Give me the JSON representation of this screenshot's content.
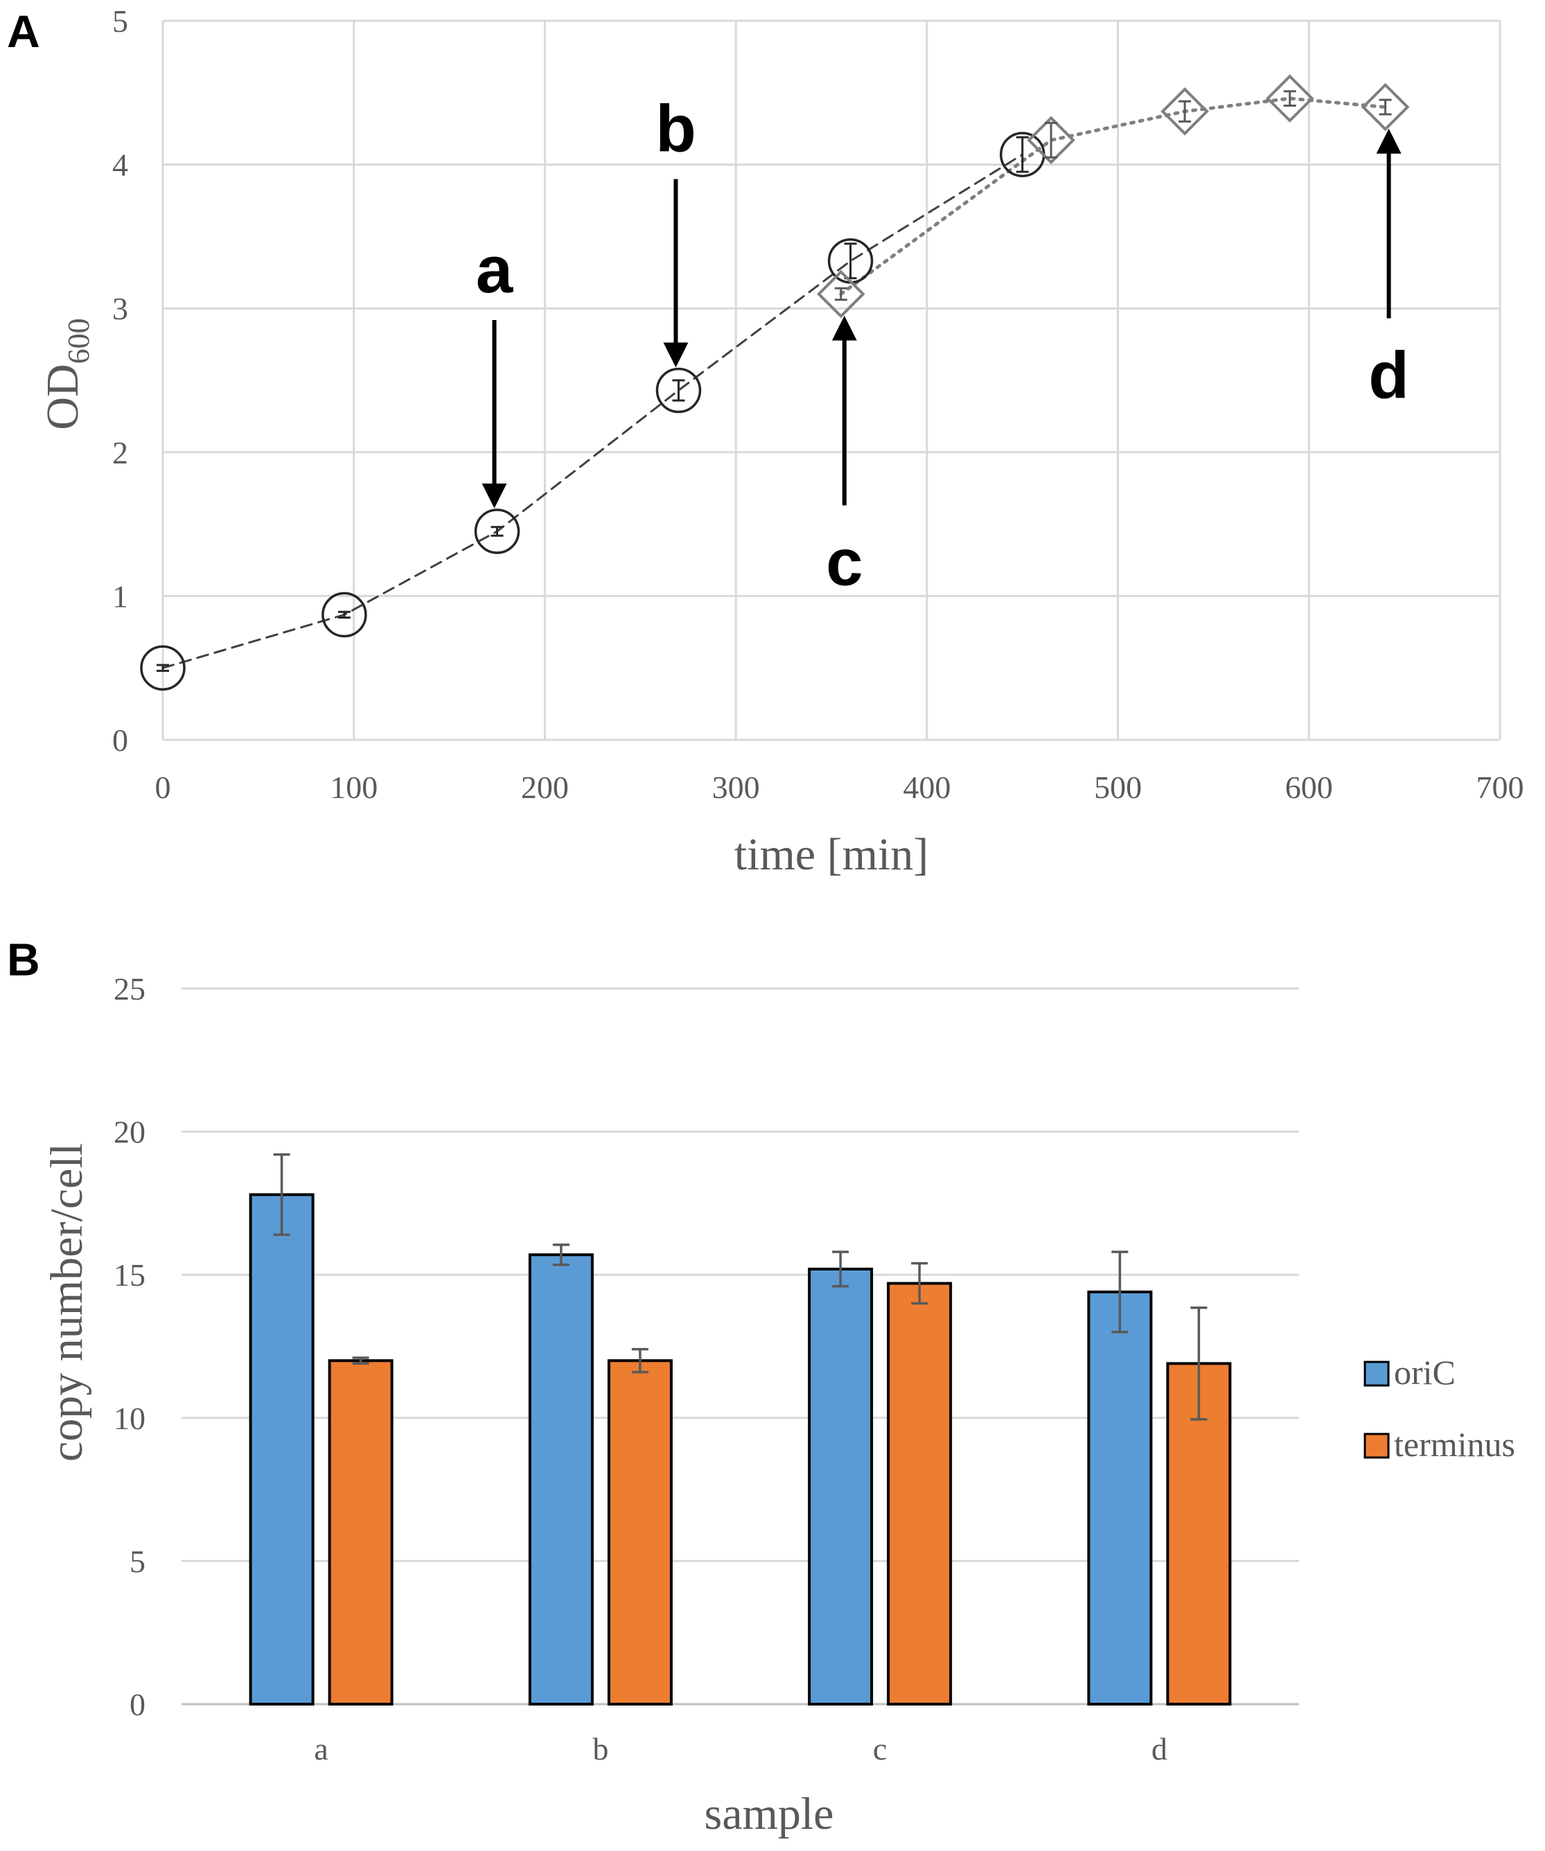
{
  "figure": {
    "panel_a_label": "A",
    "panel_b_label": "B"
  },
  "chart_data": [
    {
      "type": "line",
      "panel": "A",
      "title": "",
      "xlabel": "time [min]",
      "ylabel_main": "OD",
      "ylabel_sub": "600",
      "xlim": [
        0,
        700
      ],
      "ylim": [
        0,
        5
      ],
      "xticks": [
        "0",
        "100",
        "200",
        "300",
        "400",
        "500",
        "600",
        "700"
      ],
      "yticks": [
        "0",
        "1",
        "2",
        "3",
        "4",
        "5"
      ],
      "grid": true,
      "series": [
        {
          "name": "circles",
          "marker": "circle",
          "line": "dashed",
          "x": [
            0,
            95,
            175,
            270,
            360,
            450
          ],
          "y": [
            0.5,
            0.87,
            1.45,
            2.43,
            3.33,
            4.07
          ],
          "err": [
            0.02,
            0.02,
            0.03,
            0.07,
            0.12,
            0.12
          ]
        },
        {
          "name": "diamonds",
          "marker": "diamond",
          "line": "dotted",
          "x": [
            355,
            465,
            535,
            590,
            640
          ],
          "y": [
            3.1,
            4.17,
            4.37,
            4.46,
            4.4
          ],
          "err": [
            0.04,
            0.12,
            0.07,
            0.05,
            0.05
          ]
        }
      ],
      "annotations": [
        {
          "label": "a",
          "x": 175,
          "y": 1.45,
          "direction": "down"
        },
        {
          "label": "b",
          "x": 270,
          "y": 2.43,
          "direction": "down"
        },
        {
          "label": "c",
          "x": 355,
          "y": 3.1,
          "direction": "up"
        },
        {
          "label": "d",
          "x": 640,
          "y": 4.4,
          "direction": "up"
        }
      ]
    },
    {
      "type": "bar",
      "panel": "B",
      "title": "",
      "xlabel": "sample",
      "ylabel": "copy number/cell",
      "categories": [
        "a",
        "b",
        "c",
        "d"
      ],
      "ylim": [
        0,
        25
      ],
      "yticks": [
        "0",
        "5",
        "10",
        "15",
        "20",
        "25"
      ],
      "grid": true,
      "legend_position": "right",
      "series": [
        {
          "name": "oriC",
          "color": "#5b9bd5",
          "values": [
            17.8,
            15.7,
            15.2,
            14.4
          ],
          "err": [
            1.4,
            0.35,
            0.6,
            1.4
          ]
        },
        {
          "name": "terminus",
          "color": "#ed7d31",
          "values": [
            12.0,
            12.0,
            14.7,
            11.9
          ],
          "err": [
            0.1,
            0.4,
            0.7,
            1.95
          ]
        }
      ]
    }
  ]
}
